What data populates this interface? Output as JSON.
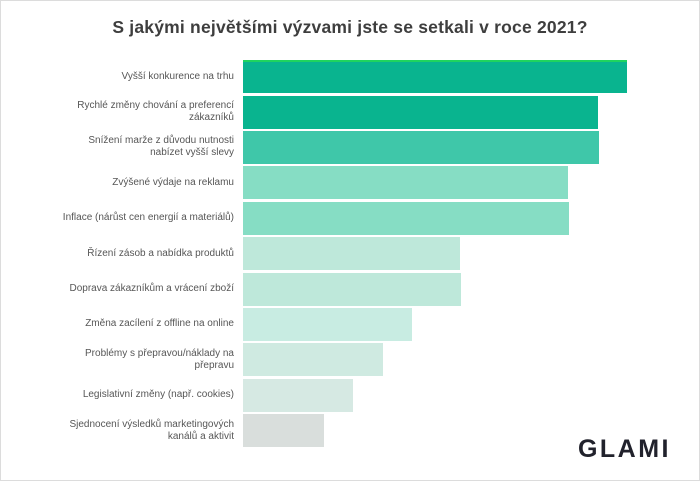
{
  "title": "S jakými největšími výzvami jste se setkali v roce 2021?",
  "watermark": "GLAMI",
  "colors": {
    "background": "#ffffff",
    "frame_border": "#dcdcdc",
    "title_text": "#3e3e3e",
    "label_text": "#565656",
    "watermark_text": "#21222c",
    "top_bar_highlight": "#1fd45f"
  },
  "chart_data": {
    "type": "bar",
    "orientation": "horizontal",
    "title": "S jakými největšími výzvami jste se setkali v roce 2021?",
    "xlabel": "",
    "ylabel": "",
    "axis_ticks_shown": false,
    "value_labels_shown": false,
    "grid": false,
    "legend": false,
    "categories": [
      "Vyšší konkurence na trhu",
      "Rychlé změny chování a preferencí zákazníků",
      "Snížení marže z důvodu nutnosti nabízet vyšší slevy",
      "Zvýšené výdaje na reklamu",
      "Inflace (nárůst cen energií a materiálů)",
      "Řízení zásob a nabídka produktů",
      "Doprava zákazníkům a vrácení zboží",
      "Změna zacílení z offline na online",
      "Problémy s přepravou/náklady na přepravu",
      "Legislativní změny (např. cookies)",
      "Sjednocení výsledků marketingových kanálů a aktivit"
    ],
    "values_relative_width_pct": [
      84.8,
      78.4,
      78.6,
      71.7,
      72.0,
      47.9,
      48.1,
      37.3,
      30.9,
      24.3,
      17.9
    ],
    "bar_colors": [
      "#09b48f",
      "#09b48f",
      "#3fc7a9",
      "#86ddc4",
      "#86ddc4",
      "#bee8da",
      "#bee8da",
      "#c8ece2",
      "#cfeae1",
      "#d6e9e3",
      "#d9dedc"
    ]
  },
  "bars": [
    {
      "label": "Vyšší konkurence na trhu",
      "value_pct": 84.8,
      "color": "#09b48f",
      "highlight_top": true
    },
    {
      "label": "Rychlé změny chování a preferencí\nzákazníků",
      "value_pct": 78.4,
      "color": "#09b48f",
      "highlight_top": false
    },
    {
      "label": "Snížení marže z důvodu nutnosti\nnabízet vyšší slevy",
      "value_pct": 78.6,
      "color": "#3fc7a9",
      "highlight_top": false
    },
    {
      "label": "Zvýšené výdaje na reklamu",
      "value_pct": 71.7,
      "color": "#86ddc4",
      "highlight_top": false
    },
    {
      "label": "Inflace (nárůst cen energií a materiálů)",
      "value_pct": 72.0,
      "color": "#86ddc4",
      "highlight_top": false
    },
    {
      "label": "Řízení zásob a nabídka produktů",
      "value_pct": 47.9,
      "color": "#bee8da",
      "highlight_top": false
    },
    {
      "label": "Doprava zákazníkům a vrácení zboží",
      "value_pct": 48.1,
      "color": "#bee8da",
      "highlight_top": false
    },
    {
      "label": "Změna zacílení z offline na online",
      "value_pct": 37.3,
      "color": "#c8ece2",
      "highlight_top": false
    },
    {
      "label": "Problémy s přepravou/náklady na\npřepravu",
      "value_pct": 30.9,
      "color": "#cfeae1",
      "highlight_top": false
    },
    {
      "label": "Legislativní změny (např. cookies)",
      "value_pct": 24.3,
      "color": "#d6e9e3",
      "highlight_top": false
    },
    {
      "label": "Sjednocení výsledků marketingových\nkanálů a aktivit",
      "value_pct": 17.9,
      "color": "#d9dedc",
      "highlight_top": false
    }
  ]
}
